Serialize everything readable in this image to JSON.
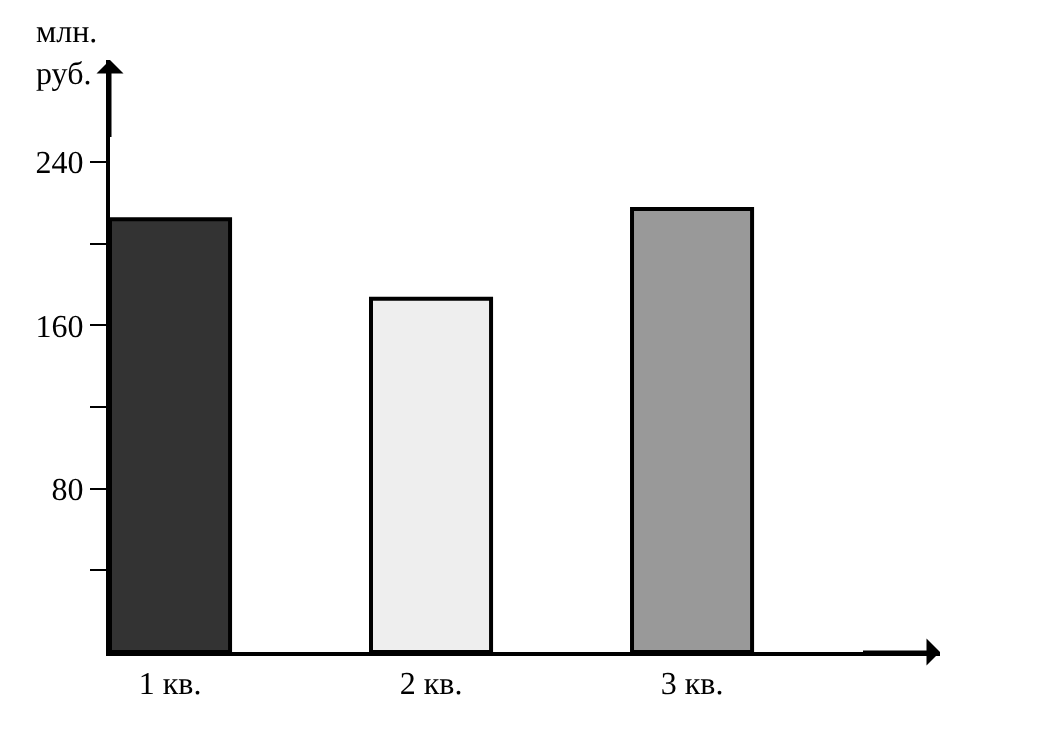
{
  "chart_data": {
    "type": "bar",
    "ylabel": "млн.\nруб.",
    "categories": [
      "1 кв.",
      "2 кв.",
      "3 кв."
    ],
    "values": [
      212,
      173,
      217
    ],
    "colors": [
      "#333333",
      "#eeeeee",
      "#999999"
    ],
    "ylim": [
      0,
      290
    ],
    "yticks": [
      {
        "value": 40,
        "label": null
      },
      80,
      {
        "value": 120,
        "label": null
      },
      160,
      {
        "value": 200,
        "label": null
      },
      240
    ],
    "grid": false
  }
}
